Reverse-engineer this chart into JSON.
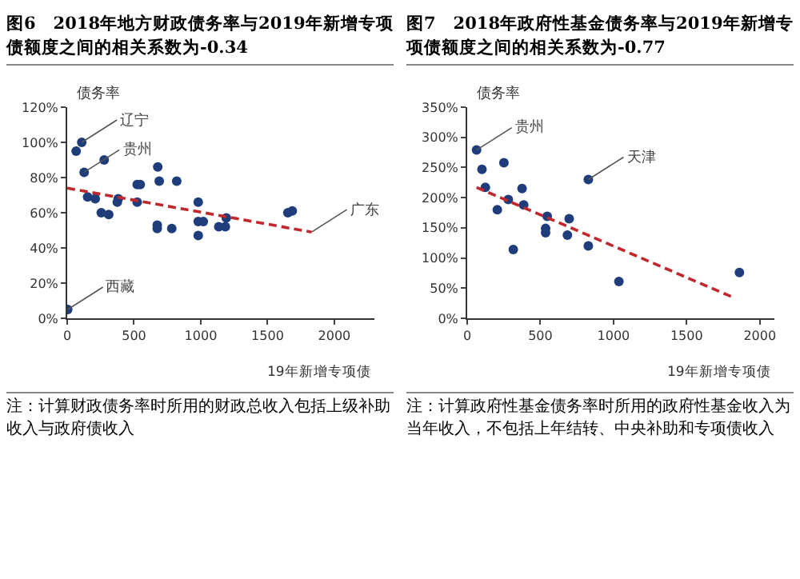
{
  "chart_data": [
    {
      "type": "scatter",
      "title": "图6　2018年地方财政债务率与2019年新增专项债额度之间的相关系数为-0.34",
      "xlabel": "19年新增专项债",
      "ylabel": "债务率",
      "grid": false,
      "legend": false,
      "xlim": [
        0,
        2300
      ],
      "xticks": [
        0,
        500,
        1000,
        1500,
        2000
      ],
      "ylim": [
        0,
        120
      ],
      "yticks": [
        {
          "value": 0,
          "label": "0%"
        },
        {
          "value": 20,
          "label": "20%"
        },
        {
          "value": 40,
          "label": "40%"
        },
        {
          "value": 60,
          "label": "60%"
        },
        {
          "value": 80,
          "label": "80%"
        },
        {
          "value": 100,
          "label": "100%"
        },
        {
          "value": 120,
          "label": "120%"
        }
      ],
      "series": [
        {
          "marker": "circle",
          "color": "#1f3d7a",
          "x": [
            67,
            109,
            127,
            153,
            210,
            255,
            277,
            311,
            375,
            382,
            524,
            524,
            547,
            678,
            689,
            674,
            674,
            783,
            820,
            981,
            981,
            1019,
            981,
            1135,
            1184,
            1191,
            1652,
            1685,
            4
          ],
          "values": [
            95,
            100,
            83,
            69,
            68,
            60,
            90,
            59,
            66,
            68,
            66,
            76,
            76,
            86,
            78,
            53,
            51,
            51,
            78,
            66,
            55,
            55,
            47,
            52,
            52,
            57,
            60,
            61,
            5
          ]
        },
        {
          "type": "line",
          "marker": "none",
          "color": "#c0282d",
          "line_style": "dashed",
          "x": [
            0,
            1830
          ],
          "values": [
            74,
            49
          ]
        }
      ],
      "annotations": [
        {
          "text": "辽宁",
          "x": 109,
          "y": 100
        },
        {
          "text": "贵州",
          "x": 127,
          "y": 83
        },
        {
          "text": "广东",
          "x": 1830,
          "y": 49
        },
        {
          "text": "西藏",
          "x": 4,
          "y": 5
        },
        "注：计算财政债务率时所用的财政总收入包括上级补助收入与政府债收入"
      ]
    },
    {
      "type": "scatter",
      "title": "图7　2018年政府性基金债务率与2019年新增专项债额度之间的相关系数为-0.77",
      "xlabel": "19年新增专项债",
      "ylabel": "债务率",
      "grid": false,
      "legend": false,
      "xlim": [
        0,
        2100
      ],
      "xticks": [
        0,
        500,
        1000,
        1500,
        2000
      ],
      "ylim": [
        0,
        350
      ],
      "yticks": [
        {
          "value": 0,
          "label": "0%"
        },
        {
          "value": 50,
          "label": "50%"
        },
        {
          "value": 100,
          "label": "100%"
        },
        {
          "value": 150,
          "label": "150%"
        },
        {
          "value": 200,
          "label": "200%"
        },
        {
          "value": 250,
          "label": "250%"
        },
        {
          "value": 300,
          "label": "300%"
        },
        {
          "value": 350,
          "label": "350%"
        }
      ],
      "series": [
        {
          "marker": "circle",
          "color": "#1f3d7a",
          "x": [
            64,
            101,
            124,
            251,
            281,
            206,
            375,
            386,
            547,
            536,
            536,
            697,
            685,
            828,
            828,
            315,
            1037,
            1861
          ],
          "values": [
            279,
            247,
            217,
            258,
            197,
            180,
            215,
            188,
            169,
            149,
            142,
            165,
            138,
            230,
            120,
            114,
            61,
            76
          ]
        },
        {
          "type": "line",
          "marker": "none",
          "color": "#c0282d",
          "line_style": "dashed",
          "x": [
            64,
            1824
          ],
          "values": [
            217,
            34
          ]
        }
      ],
      "annotations": [
        {
          "text": "贵州",
          "x": 64,
          "y": 279
        },
        {
          "text": "天津",
          "x": 828,
          "y": 230
        },
        "注：计算政府性基金债务率时所用的政府性基金收入为当年收入，不包括上年结转、中央补助和专项债收入"
      ]
    }
  ]
}
